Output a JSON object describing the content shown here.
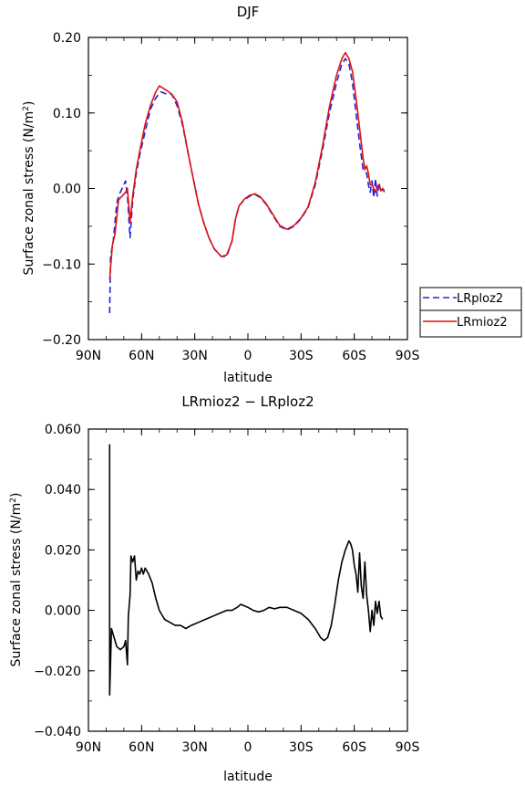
{
  "chart_data": [
    {
      "type": "line",
      "title": "DJF",
      "xlabel": "latitude",
      "ylabel": "Surface zonal stress (N/m²)",
      "ylabel_main": "Surface zonal stress (N/m",
      "ylabel_sup": "2",
      "ylabel_close": ")",
      "xlim": [
        90,
        -90
      ],
      "ylim": [
        -0.2,
        0.2
      ],
      "xticks": [
        90,
        60,
        30,
        0,
        -30,
        -60,
        -90
      ],
      "xtick_labels": [
        "90N",
        "60N",
        "30N",
        "0",
        "30S",
        "60S",
        "90S"
      ],
      "yticks": [
        -0.2,
        -0.1,
        0.0,
        0.1,
        0.2
      ],
      "ytick_labels": [
        "−0.20",
        "−0.10",
        "0.00",
        "0.10",
        "0.20"
      ],
      "legend_position": "right",
      "series": [
        {
          "name": "LRploz2",
          "color": "#2222dd",
          "dash": true,
          "points": [
            [
              78,
              -0.165
            ],
            [
              77.5,
              -0.09
            ],
            [
              76,
              -0.07
            ],
            [
              74,
              -0.02
            ],
            [
              73,
              -0.01
            ],
            [
              71,
              0.0
            ],
            [
              69,
              0.01
            ],
            [
              68,
              -0.01
            ],
            [
              66.5,
              -0.065
            ],
            [
              65,
              -0.015
            ],
            [
              63,
              0.02
            ],
            [
              61,
              0.045
            ],
            [
              58,
              0.075
            ],
            [
              55,
              0.105
            ],
            [
              52,
              0.12
            ],
            [
              49,
              0.128
            ],
            [
              46,
              0.125
            ],
            [
              43,
              0.125
            ],
            [
              40,
              0.11
            ],
            [
              37,
              0.085
            ],
            [
              34,
              0.05
            ],
            [
              31,
              0.015
            ],
            [
              28,
              -0.02
            ],
            [
              25,
              -0.045
            ],
            [
              22,
              -0.065
            ],
            [
              19,
              -0.08
            ],
            [
              15,
              -0.09
            ],
            [
              12,
              -0.09
            ],
            [
              9,
              -0.07
            ],
            [
              7,
              -0.04
            ],
            [
              5,
              -0.023
            ],
            [
              2,
              -0.015
            ],
            [
              -1,
              -0.01
            ],
            [
              -4,
              -0.008
            ],
            [
              -7,
              -0.012
            ],
            [
              -10,
              -0.02
            ],
            [
              -14,
              -0.035
            ],
            [
              -18,
              -0.05
            ],
            [
              -22,
              -0.055
            ],
            [
              -26,
              -0.05
            ],
            [
              -30,
              -0.04
            ],
            [
              -34,
              -0.025
            ],
            [
              -38,
              0.005
            ],
            [
              -42,
              0.05
            ],
            [
              -46,
              0.1
            ],
            [
              -50,
              0.14
            ],
            [
              -53,
              0.165
            ],
            [
              -55,
              0.172
            ],
            [
              -57,
              0.165
            ],
            [
              -59,
              0.14
            ],
            [
              -61,
              0.1
            ],
            [
              -63,
              0.06
            ],
            [
              -65,
              0.025
            ],
            [
              -67,
              0.02
            ],
            [
              -68,
              0.005
            ],
            [
              -69,
              -0.005
            ],
            [
              -70,
              0.01
            ],
            [
              -71,
              -0.012
            ],
            [
              -72,
              0.013
            ],
            [
              -73,
              -0.01
            ],
            [
              -74,
              0.008
            ],
            [
              -75,
              -0.005
            ],
            [
              -76,
              0.0
            ],
            [
              -77,
              -0.003
            ]
          ]
        },
        {
          "name": "LRmioz2",
          "color": "#dd1111",
          "dash": false,
          "points": [
            [
              78,
              -0.12
            ],
            [
              76.5,
              -0.075
            ],
            [
              75,
              -0.06
            ],
            [
              73,
              -0.015
            ],
            [
              71,
              -0.01
            ],
            [
              69,
              -0.005
            ],
            [
              68,
              0.0
            ],
            [
              66.5,
              -0.045
            ],
            [
              65,
              -0.01
            ],
            [
              63,
              0.025
            ],
            [
              61,
              0.05
            ],
            [
              58,
              0.085
            ],
            [
              55,
              0.11
            ],
            [
              52,
              0.128
            ],
            [
              50,
              0.136
            ],
            [
              48,
              0.133
            ],
            [
              46,
              0.13
            ],
            [
              43,
              0.125
            ],
            [
              40,
              0.115
            ],
            [
              37,
              0.088
            ],
            [
              34,
              0.05
            ],
            [
              31,
              0.015
            ],
            [
              28,
              -0.02
            ],
            [
              25,
              -0.045
            ],
            [
              22,
              -0.065
            ],
            [
              19,
              -0.08
            ],
            [
              15,
              -0.09
            ],
            [
              12,
              -0.088
            ],
            [
              9,
              -0.07
            ],
            [
              7,
              -0.04
            ],
            [
              5,
              -0.023
            ],
            [
              2,
              -0.014
            ],
            [
              -1,
              -0.009
            ],
            [
              -4,
              -0.007
            ],
            [
              -7,
              -0.011
            ],
            [
              -10,
              -0.019
            ],
            [
              -14,
              -0.034
            ],
            [
              -18,
              -0.049
            ],
            [
              -22,
              -0.054
            ],
            [
              -26,
              -0.049
            ],
            [
              -30,
              -0.039
            ],
            [
              -34,
              -0.024
            ],
            [
              -38,
              0.008
            ],
            [
              -42,
              0.055
            ],
            [
              -46,
              0.108
            ],
            [
              -50,
              0.15
            ],
            [
              -53,
              0.172
            ],
            [
              -55,
              0.18
            ],
            [
              -57,
              0.172
            ],
            [
              -59,
              0.155
            ],
            [
              -61,
              0.12
            ],
            [
              -63,
              0.08
            ],
            [
              -65,
              0.04
            ],
            [
              -66,
              0.025
            ],
            [
              -67,
              0.03
            ],
            [
              -68,
              0.02
            ],
            [
              -69,
              0.005
            ],
            [
              -70,
              0.005
            ],
            [
              -71,
              0.0
            ],
            [
              -72,
              -0.005
            ],
            [
              -73,
              0.002
            ],
            [
              -74,
              0.005
            ],
            [
              -75,
              -0.003
            ],
            [
              -76,
              0.0
            ],
            [
              -77,
              -0.005
            ]
          ]
        }
      ]
    },
    {
      "type": "line",
      "title": "LRmioz2 − LRploz2",
      "xlabel": "latitude",
      "ylabel": "Surface zonal stress (N/m²)",
      "ylabel_main": "Surface zonal stress (N/m",
      "ylabel_sup": "2",
      "ylabel_close": ")",
      "xlim": [
        90,
        -90
      ],
      "ylim": [
        -0.04,
        0.06
      ],
      "xticks": [
        90,
        60,
        30,
        0,
        -30,
        -60,
        -90
      ],
      "xtick_labels": [
        "90N",
        "60N",
        "30N",
        "0",
        "30S",
        "60S",
        "90S"
      ],
      "yticks": [
        -0.04,
        -0.02,
        0.0,
        0.02,
        0.04,
        0.06
      ],
      "ytick_labels": [
        "−0.040",
        "−0.020",
        "0.000",
        "0.020",
        "0.040",
        "0.060"
      ],
      "series": [
        {
          "color": "#000000",
          "dash": false,
          "points": [
            [
              78,
              0.055
            ],
            [
              78,
              -0.028
            ],
            [
              77,
              -0.006
            ],
            [
              76,
              -0.008
            ],
            [
              74,
              -0.012
            ],
            [
              72,
              -0.013
            ],
            [
              70,
              -0.012
            ],
            [
              69,
              -0.01
            ],
            [
              68,
              -0.018
            ],
            [
              67.5,
              -0.002
            ],
            [
              66.5,
              0.005
            ],
            [
              66,
              0.018
            ],
            [
              65,
              0.016
            ],
            [
              64,
              0.018
            ],
            [
              63,
              0.01
            ],
            [
              62,
              0.013
            ],
            [
              61,
              0.012
            ],
            [
              60,
              0.014
            ],
            [
              59,
              0.012
            ],
            [
              58,
              0.014
            ],
            [
              56,
              0.012
            ],
            [
              54,
              0.009
            ],
            [
              52,
              0.004
            ],
            [
              50,
              0.0
            ],
            [
              47,
              -0.003
            ],
            [
              44,
              -0.004
            ],
            [
              41,
              -0.005
            ],
            [
              38,
              -0.005
            ],
            [
              35,
              -0.006
            ],
            [
              32,
              -0.005
            ],
            [
              28,
              -0.004
            ],
            [
              24,
              -0.003
            ],
            [
              20,
              -0.002
            ],
            [
              16,
              -0.001
            ],
            [
              12,
              0.0
            ],
            [
              9,
              0.0
            ],
            [
              6,
              0.001
            ],
            [
              4,
              0.002
            ],
            [
              2,
              0.0015
            ],
            [
              0,
              0.001
            ],
            [
              -3,
              0.0
            ],
            [
              -6,
              -0.0005
            ],
            [
              -9,
              0.0
            ],
            [
              -12,
              0.001
            ],
            [
              -15,
              0.0005
            ],
            [
              -18,
              0.001
            ],
            [
              -22,
              0.001
            ],
            [
              -26,
              0.0
            ],
            [
              -30,
              -0.001
            ],
            [
              -34,
              -0.003
            ],
            [
              -38,
              -0.006
            ],
            [
              -41,
              -0.009
            ],
            [
              -43,
              -0.01
            ],
            [
              -45,
              -0.009
            ],
            [
              -47,
              -0.005
            ],
            [
              -49,
              0.002
            ],
            [
              -51,
              0.01
            ],
            [
              -53,
              0.016
            ],
            [
              -55,
              0.02
            ],
            [
              -57,
              0.023
            ],
            [
              -58,
              0.022
            ],
            [
              -59,
              0.02
            ],
            [
              -60,
              0.015
            ],
            [
              -61,
              0.012
            ],
            [
              -62,
              0.006
            ],
            [
              -63,
              0.019
            ],
            [
              -64,
              0.008
            ],
            [
              -65,
              0.004
            ],
            [
              -66,
              0.016
            ],
            [
              -67,
              0.005
            ],
            [
              -68,
              0.0
            ],
            [
              -69,
              -0.007
            ],
            [
              -70,
              0.0
            ],
            [
              -71,
              -0.005
            ],
            [
              -72,
              0.003
            ],
            [
              -73,
              -0.001
            ],
            [
              -74,
              0.003
            ],
            [
              -75,
              -0.002
            ],
            [
              -76,
              -0.003
            ]
          ]
        }
      ]
    }
  ]
}
